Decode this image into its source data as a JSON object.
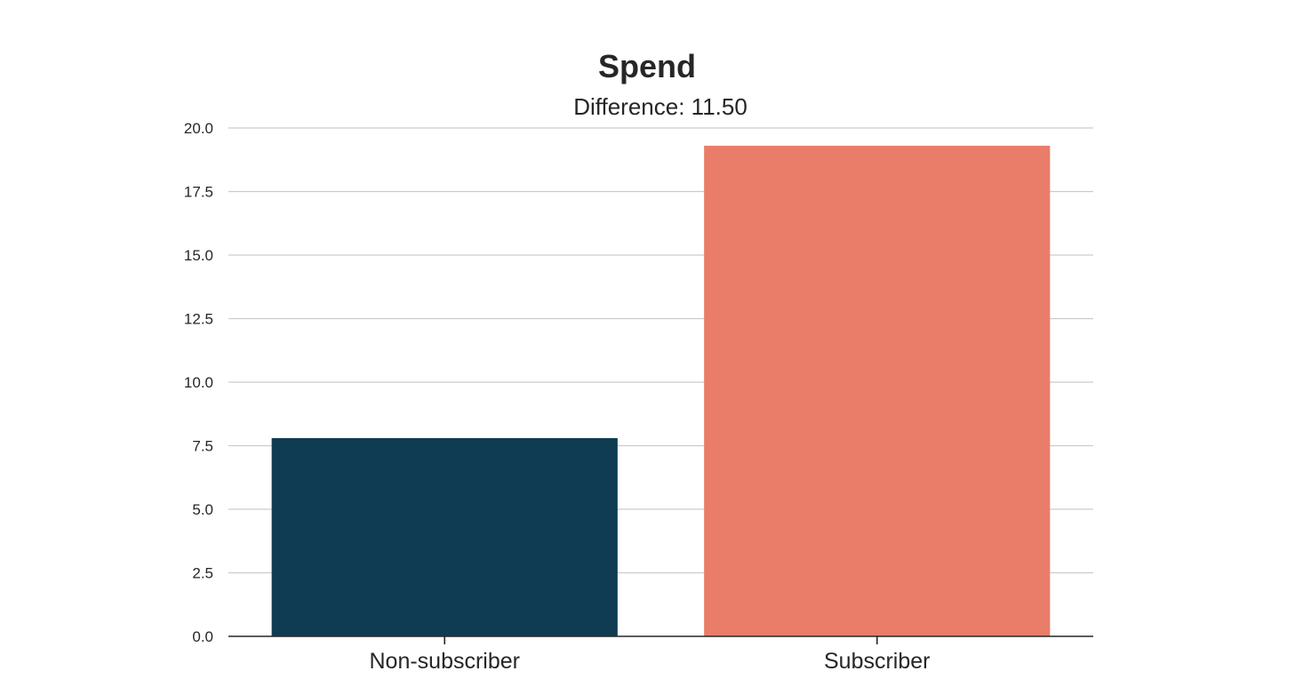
{
  "chart_data": {
    "type": "bar",
    "title": "Spend",
    "subtitle": "Difference: 11.50",
    "xlabel": "",
    "ylabel": "",
    "categories": [
      "Non-subscriber",
      "Subscriber"
    ],
    "values": [
      7.8,
      19.3
    ],
    "colors": [
      "#0f3c52",
      "#e97d6a"
    ],
    "ylim": [
      0,
      20
    ],
    "yticks": [
      0,
      2.5,
      5,
      7.5,
      10,
      12.5,
      15,
      17.5,
      20
    ],
    "ytick_labels": [
      "0.0",
      "2.5",
      "5.0",
      "7.5",
      "10.0",
      "12.5",
      "15.0",
      "17.5",
      "20.0"
    ],
    "grid": "y",
    "legend": "none"
  }
}
